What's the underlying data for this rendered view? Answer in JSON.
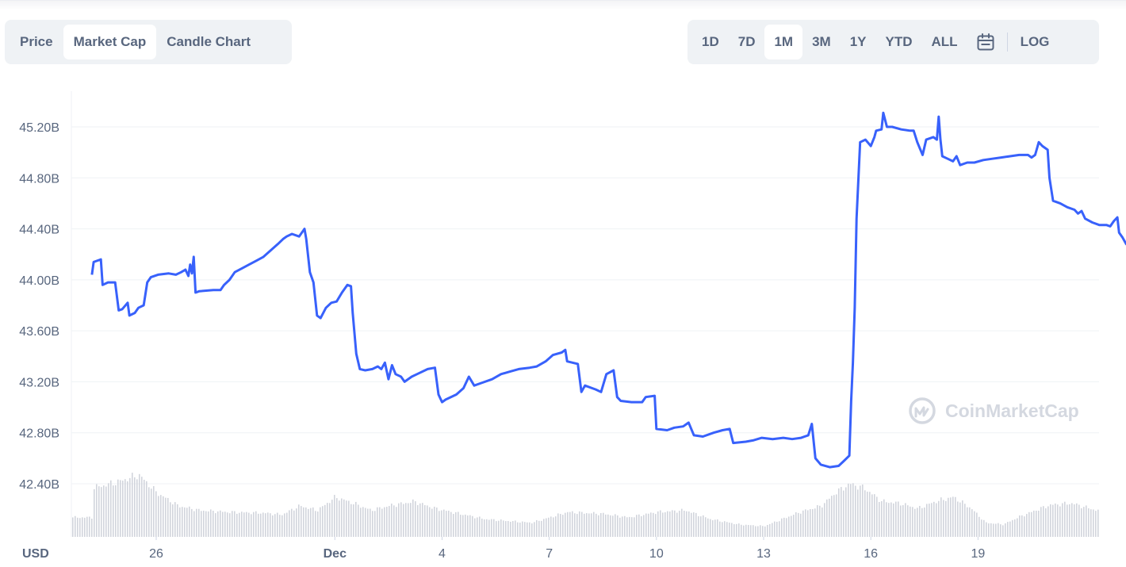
{
  "tabs": {
    "chart_types": [
      "Price",
      "Market Cap",
      "Candle Chart"
    ],
    "active_chart_type": "Market Cap",
    "ranges": [
      "1D",
      "7D",
      "1M",
      "3M",
      "1Y",
      "YTD",
      "ALL"
    ],
    "active_range": "1M",
    "calendar_icon": "calendar-icon",
    "log_label": "LOG"
  },
  "watermark": "CoinMarketCap",
  "colors": {
    "line": "#3861fb",
    "volume": "#d1d4dc",
    "grid": "#eff2f5",
    "text": "#58667e"
  },
  "chart_data": {
    "type": "line",
    "currency_label": "USD",
    "yticks": [
      "45.20B",
      "44.80B",
      "44.40B",
      "44.00B",
      "43.60B",
      "43.20B",
      "42.80B",
      "42.40B"
    ],
    "ytick_values": [
      45.2,
      44.8,
      44.4,
      44.0,
      43.6,
      43.2,
      42.8,
      42.4
    ],
    "ylim": [
      42.2,
      45.5
    ],
    "xlim": [
      -1.8,
      28.6
    ],
    "xticks": [
      {
        "label": "26",
        "day": 0,
        "bold": false
      },
      {
        "label": "Dec",
        "day": 5,
        "bold": true
      },
      {
        "label": "4",
        "day": 8,
        "bold": false
      },
      {
        "label": "7",
        "day": 11,
        "bold": false
      },
      {
        "label": "10",
        "day": 14,
        "bold": false
      },
      {
        "label": "13",
        "day": 17,
        "bold": false
      },
      {
        "label": "16",
        "day": 20,
        "bold": false
      },
      {
        "label": "19",
        "day": 23,
        "bold": false
      }
    ],
    "grid": true,
    "series": [
      {
        "values": [
          [
            -1.8,
            44.04
          ],
          [
            -1.75,
            44.14
          ],
          [
            -1.55,
            44.16
          ],
          [
            -1.5,
            43.96
          ],
          [
            -1.35,
            43.98
          ],
          [
            -1.15,
            43.98
          ],
          [
            -1.05,
            43.76
          ],
          [
            -0.95,
            43.77
          ],
          [
            -0.8,
            43.82
          ],
          [
            -0.75,
            43.72
          ],
          [
            -0.6,
            43.74
          ],
          [
            -0.5,
            43.78
          ],
          [
            -0.35,
            43.8
          ],
          [
            -0.25,
            43.98
          ],
          [
            -0.15,
            44.02
          ],
          [
            0.05,
            44.04
          ],
          [
            0.35,
            44.05
          ],
          [
            0.55,
            44.04
          ],
          [
            0.7,
            44.06
          ],
          [
            0.82,
            44.08
          ],
          [
            0.9,
            44.03
          ],
          [
            0.95,
            44.12
          ],
          [
            1.0,
            44.05
          ],
          [
            1.05,
            44.18
          ],
          [
            1.1,
            43.9
          ],
          [
            1.2,
            43.91
          ],
          [
            1.6,
            43.92
          ],
          [
            1.8,
            43.92
          ],
          [
            1.9,
            43.96
          ],
          [
            2.05,
            44.0
          ],
          [
            2.2,
            44.06
          ],
          [
            2.4,
            44.09
          ],
          [
            2.6,
            44.12
          ],
          [
            2.8,
            44.15
          ],
          [
            3.0,
            44.18
          ],
          [
            3.2,
            44.23
          ],
          [
            3.4,
            44.28
          ],
          [
            3.55,
            44.32
          ],
          [
            3.65,
            44.34
          ],
          [
            3.8,
            44.36
          ],
          [
            4.0,
            44.34
          ],
          [
            4.15,
            44.4
          ],
          [
            4.2,
            44.32
          ],
          [
            4.3,
            44.06
          ],
          [
            4.4,
            43.98
          ],
          [
            4.5,
            43.72
          ],
          [
            4.6,
            43.7
          ],
          [
            4.75,
            43.78
          ],
          [
            4.9,
            43.82
          ],
          [
            5.05,
            43.83
          ],
          [
            5.2,
            43.9
          ],
          [
            5.35,
            43.96
          ],
          [
            5.45,
            43.95
          ],
          [
            5.5,
            43.74
          ],
          [
            5.6,
            43.42
          ],
          [
            5.7,
            43.3
          ],
          [
            5.85,
            43.29
          ],
          [
            6.05,
            43.3
          ],
          [
            6.2,
            43.32
          ],
          [
            6.3,
            43.3
          ],
          [
            6.4,
            43.35
          ],
          [
            6.5,
            43.22
          ],
          [
            6.6,
            43.33
          ],
          [
            6.7,
            43.26
          ],
          [
            6.85,
            43.24
          ],
          [
            6.95,
            43.2
          ],
          [
            7.15,
            43.24
          ],
          [
            7.3,
            43.26
          ],
          [
            7.6,
            43.3
          ],
          [
            7.8,
            43.31
          ],
          [
            7.9,
            43.1
          ],
          [
            8.0,
            43.04
          ],
          [
            8.1,
            43.06
          ],
          [
            8.4,
            43.1
          ],
          [
            8.6,
            43.15
          ],
          [
            8.75,
            43.24
          ],
          [
            8.9,
            43.17
          ],
          [
            9.1,
            43.19
          ],
          [
            9.4,
            43.22
          ],
          [
            9.65,
            43.26
          ],
          [
            9.9,
            43.28
          ],
          [
            10.15,
            43.3
          ],
          [
            10.45,
            43.31
          ],
          [
            10.65,
            43.32
          ],
          [
            10.9,
            43.36
          ],
          [
            11.1,
            43.41
          ],
          [
            11.35,
            43.43
          ],
          [
            11.45,
            43.45
          ],
          [
            11.5,
            43.36
          ],
          [
            11.8,
            43.34
          ],
          [
            11.9,
            43.12
          ],
          [
            12.0,
            43.17
          ],
          [
            12.3,
            43.14
          ],
          [
            12.45,
            43.12
          ],
          [
            12.6,
            43.26
          ],
          [
            12.8,
            43.29
          ],
          [
            12.9,
            43.08
          ],
          [
            13.0,
            43.05
          ],
          [
            13.3,
            43.04
          ],
          [
            13.6,
            43.04
          ],
          [
            13.7,
            43.08
          ],
          [
            13.95,
            43.09
          ],
          [
            14.0,
            42.83
          ],
          [
            14.3,
            42.82
          ],
          [
            14.5,
            42.84
          ],
          [
            14.75,
            42.85
          ],
          [
            14.9,
            42.88
          ],
          [
            15.05,
            42.78
          ],
          [
            15.3,
            42.77
          ],
          [
            15.6,
            42.8
          ],
          [
            15.85,
            42.82
          ],
          [
            16.05,
            42.83
          ],
          [
            16.15,
            42.72
          ],
          [
            16.5,
            42.73
          ],
          [
            16.7,
            42.74
          ],
          [
            16.95,
            42.76
          ],
          [
            17.25,
            42.75
          ],
          [
            17.55,
            42.76
          ],
          [
            17.8,
            42.75
          ],
          [
            18.05,
            42.76
          ],
          [
            18.25,
            42.78
          ],
          [
            18.35,
            42.87
          ],
          [
            18.45,
            42.6
          ],
          [
            18.6,
            42.55
          ],
          [
            18.85,
            42.53
          ],
          [
            19.1,
            42.54
          ],
          [
            19.25,
            42.58
          ],
          [
            19.4,
            42.62
          ],
          [
            19.45,
            43.05
          ],
          [
            19.5,
            43.35
          ],
          [
            19.55,
            43.78
          ],
          [
            19.6,
            44.48
          ],
          [
            19.7,
            45.08
          ],
          [
            19.85,
            45.1
          ],
          [
            20.0,
            45.05
          ],
          [
            20.1,
            45.12
          ],
          [
            20.15,
            45.17
          ],
          [
            20.3,
            45.18
          ],
          [
            20.35,
            45.31
          ],
          [
            20.45,
            45.2
          ],
          [
            20.6,
            45.2
          ],
          [
            20.85,
            45.18
          ],
          [
            21.1,
            45.17
          ],
          [
            21.2,
            45.17
          ],
          [
            21.3,
            45.08
          ],
          [
            21.45,
            44.98
          ],
          [
            21.55,
            45.1
          ],
          [
            21.75,
            45.12
          ],
          [
            21.85,
            45.1
          ],
          [
            21.9,
            45.28
          ],
          [
            21.95,
            45.1
          ],
          [
            22.0,
            44.97
          ],
          [
            22.15,
            44.95
          ],
          [
            22.3,
            44.93
          ],
          [
            22.4,
            44.97
          ],
          [
            22.5,
            44.9
          ],
          [
            22.7,
            44.92
          ],
          [
            22.9,
            44.92
          ],
          [
            23.15,
            44.94
          ],
          [
            23.4,
            44.95
          ],
          [
            23.65,
            44.96
          ],
          [
            23.9,
            44.97
          ],
          [
            24.15,
            44.98
          ],
          [
            24.4,
            44.98
          ],
          [
            24.5,
            44.96
          ],
          [
            24.6,
            44.98
          ],
          [
            24.7,
            45.08
          ],
          [
            24.8,
            45.05
          ],
          [
            24.95,
            45.02
          ],
          [
            25.0,
            44.8
          ],
          [
            25.1,
            44.62
          ],
          [
            25.3,
            44.6
          ],
          [
            25.5,
            44.57
          ],
          [
            25.7,
            44.55
          ],
          [
            25.8,
            44.52
          ],
          [
            25.9,
            44.54
          ],
          [
            26.0,
            44.48
          ],
          [
            26.2,
            44.45
          ],
          [
            26.4,
            44.43
          ],
          [
            26.6,
            44.43
          ],
          [
            26.7,
            44.42
          ],
          [
            26.8,
            44.46
          ],
          [
            26.9,
            44.49
          ],
          [
            26.95,
            44.37
          ],
          [
            27.05,
            44.33
          ],
          [
            27.15,
            44.28
          ],
          [
            27.25,
            44.27
          ],
          [
            27.35,
            44.3
          ],
          [
            27.5,
            44.28
          ],
          [
            27.7,
            44.29
          ],
          [
            27.9,
            44.29
          ]
        ]
      }
    ],
    "volume_profile": [
      [
        -1.8,
        0.55
      ],
      [
        -1.1,
        0.62
      ],
      [
        -0.5,
        0.7
      ],
      [
        0.0,
        0.5
      ],
      [
        0.6,
        0.35
      ],
      [
        1.2,
        0.3
      ],
      [
        2.0,
        0.28
      ],
      [
        3.0,
        0.27
      ],
      [
        3.5,
        0.25
      ],
      [
        4.0,
        0.35
      ],
      [
        4.5,
        0.3
      ],
      [
        5.0,
        0.45
      ],
      [
        5.5,
        0.38
      ],
      [
        6.0,
        0.3
      ],
      [
        6.5,
        0.35
      ],
      [
        7.2,
        0.4
      ],
      [
        7.8,
        0.32
      ],
      [
        8.5,
        0.26
      ],
      [
        9.2,
        0.2
      ],
      [
        9.8,
        0.18
      ],
      [
        10.5,
        0.16
      ],
      [
        11.5,
        0.28
      ],
      [
        12.5,
        0.26
      ],
      [
        13.2,
        0.22
      ],
      [
        14.0,
        0.28
      ],
      [
        14.8,
        0.3
      ],
      [
        15.5,
        0.2
      ],
      [
        16.3,
        0.14
      ],
      [
        17.0,
        0.12
      ],
      [
        17.5,
        0.2
      ],
      [
        18.0,
        0.28
      ],
      [
        18.6,
        0.35
      ],
      [
        19.0,
        0.5
      ],
      [
        19.4,
        0.6
      ],
      [
        19.8,
        0.55
      ],
      [
        20.3,
        0.4
      ],
      [
        20.8,
        0.38
      ],
      [
        21.3,
        0.32
      ],
      [
        21.8,
        0.4
      ],
      [
        22.3,
        0.45
      ],
      [
        22.8,
        0.32
      ],
      [
        23.2,
        0.16
      ],
      [
        23.7,
        0.14
      ],
      [
        24.1,
        0.22
      ],
      [
        24.6,
        0.3
      ],
      [
        25.0,
        0.36
      ],
      [
        25.6,
        0.38
      ],
      [
        26.3,
        0.3
      ],
      [
        26.9,
        0.26
      ],
      [
        27.6,
        0.24
      ],
      [
        27.9,
        0.22
      ]
    ]
  }
}
